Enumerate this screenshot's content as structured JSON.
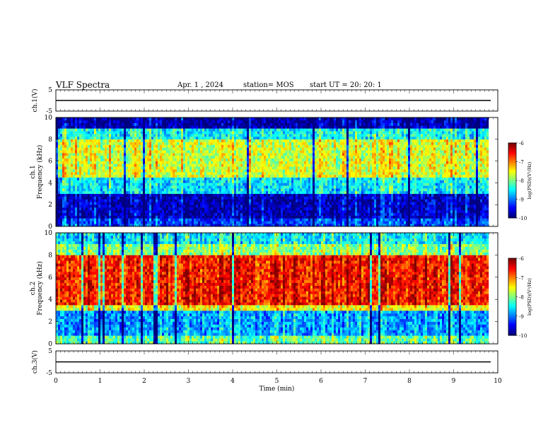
{
  "header": {
    "title": "VLF Spectra",
    "date": "Apr. 1 , 2024",
    "station": "station= MOS",
    "start": "start UT =  20: 20: 1"
  },
  "chart_data": [
    {
      "type": "line",
      "panel": "ch1-waveform",
      "ylabel": "ch.1(V)",
      "ylim": [
        -5,
        5
      ],
      "yticks": [
        "5",
        "-5"
      ],
      "x": [
        0,
        10
      ],
      "y": [
        0,
        0
      ]
    },
    {
      "type": "heatmap",
      "panel": "ch1-spectrogram",
      "ylabel": "ch.1\nFrequency (kHz)",
      "ylim": [
        0,
        10
      ],
      "yticks": [
        "0",
        "2",
        "4",
        "6",
        "8",
        "10"
      ],
      "xlim": [
        0,
        9.8
      ],
      "colorbar": {
        "label": "log(PSD)(V²/Hz)",
        "range": [
          -10,
          -6
        ],
        "ticks": [
          "-6",
          "-7",
          "-8",
          "-9",
          "-10"
        ]
      },
      "bands": [
        {
          "f": [
            0,
            0.6
          ],
          "level": -9.3
        },
        {
          "f": [
            0.6,
            3.0
          ],
          "level": -9.8
        },
        {
          "f": [
            3.0,
            4.5
          ],
          "level": -8.6
        },
        {
          "f": [
            4.5,
            8.0
          ],
          "level": -7.7
        },
        {
          "f": [
            8.0,
            9.0
          ],
          "level": -8.5
        },
        {
          "f": [
            9.0,
            10.0
          ],
          "level": -9.9
        }
      ]
    },
    {
      "type": "heatmap",
      "panel": "ch2-spectrogram",
      "ylabel": "ch.2\nFrequency (kHz)",
      "ylim": [
        0,
        10
      ],
      "yticks": [
        "0",
        "2",
        "4",
        "6",
        "8",
        "10"
      ],
      "xlim": [
        0,
        9.8
      ],
      "colorbar": {
        "label": "log(PSD)(V²/Hz)",
        "range": [
          -10,
          -6
        ],
        "ticks": [
          "-6",
          "-7",
          "-8",
          "-9",
          "-10"
        ]
      },
      "bands": [
        {
          "f": [
            0,
            0.6
          ],
          "level": -8.2
        },
        {
          "f": [
            0.6,
            2.8
          ],
          "level": -8.9
        },
        {
          "f": [
            2.8,
            3.5
          ],
          "level": -7.6
        },
        {
          "f": [
            3.5,
            8.0
          ],
          "level": -6.6
        },
        {
          "f": [
            8.0,
            9.0
          ],
          "level": -8.0
        },
        {
          "f": [
            9.0,
            10.0
          ],
          "level": -8.6
        }
      ]
    },
    {
      "type": "line",
      "panel": "ch3-waveform",
      "ylabel": "ch.3(V)",
      "ylim": [
        -5,
        5
      ],
      "yticks": [
        "5",
        "-5"
      ],
      "x": [
        0,
        10
      ],
      "y": [
        0,
        0
      ]
    }
  ],
  "xaxis": {
    "label": "Time (min)",
    "ticks": [
      "0",
      "1",
      "2",
      "3",
      "4",
      "5",
      "6",
      "7",
      "8",
      "9",
      "10"
    ],
    "range": [
      0,
      10
    ]
  }
}
